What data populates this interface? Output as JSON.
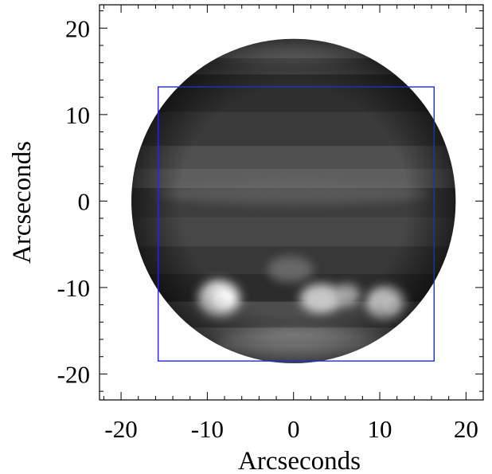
{
  "figure": {
    "xlabel": "Arcseconds",
    "ylabel": "Arcseconds",
    "x_range": [
      -22.5,
      22
    ],
    "y_range": [
      -23,
      22.7
    ],
    "x_ticks": [
      -20,
      -10,
      0,
      10,
      20
    ],
    "y_ticks": [
      20,
      10,
      0,
      -10,
      -20
    ],
    "x_tick_labels": [
      "-20",
      "-10",
      "0",
      "10",
      "20"
    ],
    "y_tick_labels": [
      "20",
      "10",
      "0",
      "-10",
      "-20"
    ],
    "planet": {
      "center": [
        0,
        0
      ],
      "radius_arcsec": 18.8
    },
    "field_box": {
      "x": [
        -15.7,
        16.3
      ],
      "y": [
        -18.5,
        13.2
      ]
    },
    "colors": {
      "box": "#1f2bd6",
      "axes": "#000000",
      "background": "#ffffff"
    }
  }
}
